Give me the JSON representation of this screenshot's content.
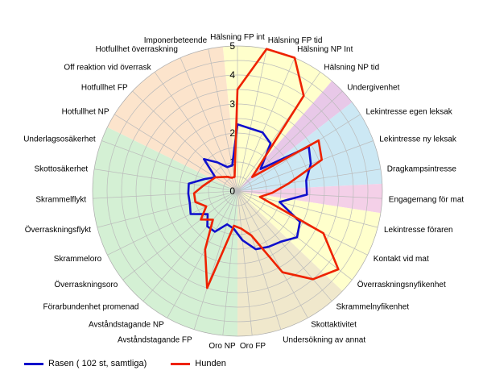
{
  "chart_data": {
    "type": "radar",
    "axes": [
      "Hälsning FP int",
      "Hälsning FP tid",
      "Hälsning NP Int",
      "Hälsning NP tid",
      "Undergivenhet",
      "Lekintresse egen leksak",
      "Lekintresse ny leksak",
      "Dragkampsintresse",
      "Engagemang för mat",
      "Lekintresse föraren",
      "Kontakt vid mat",
      "Överraskningsnyfikenhet",
      "Skrammelnyfikenhet",
      "Skottaktivitet",
      "Undersökning av annat",
      "Oro FP",
      "Oro NP",
      "Avståndstagande FP",
      "Avståndstagande NP",
      "Förarbundenhet promenad",
      "Överraskningsoro",
      "Skrammeloro",
      "Överraskningsflykt",
      "Skrammelflykt",
      "Skottosäkerhet",
      "Underlagsosäkerhet",
      "Hotfullhet NP",
      "Hotfullhet FP",
      "Off reaktion vid överrask",
      "Hotfullhet överraskning",
      "Imponerbeteende"
    ],
    "rlim": [
      0,
      5
    ],
    "tick_labels": [
      "1",
      "2",
      "3",
      "4",
      "5"
    ],
    "grid": true,
    "sectors": [
      {
        "from": 0,
        "to": 3,
        "color": "#ffffcc"
      },
      {
        "from": 4,
        "to": 4,
        "color": "#e8c8e8"
      },
      {
        "from": 5,
        "to": 7,
        "color": "#cce8f4"
      },
      {
        "from": 8,
        "to": 8,
        "color": "#f4d0e8"
      },
      {
        "from": 9,
        "to": 11,
        "color": "#ffffcc"
      },
      {
        "from": 12,
        "to": 15,
        "color": "#f0e8cc"
      },
      {
        "from": 16,
        "to": 25,
        "color": "#d4f0d4"
      },
      {
        "from": 26,
        "to": 30,
        "color": "#fce4cc"
      }
    ],
    "series": [
      {
        "name": "Rasen ( 102 st, samtliga)",
        "color": "#1010cc",
        "values": [
          2.3,
          2.2,
          2.2,
          2.0,
          1.1,
          2.9,
          2.7,
          2.4,
          2.4,
          1.5,
          2.4,
          2.6,
          2.3,
          2.2,
          2.1,
          1.7,
          1.3,
          1.2,
          1.6,
          1.6,
          1.3,
          1.8,
          1.7,
          1.7,
          1.7,
          1.2,
          0.9,
          1.6,
          1.2,
          0.9,
          0.9
        ]
      },
      {
        "name": "Hunden",
        "color": "#ee2200",
        "values": [
          3.5,
          5.0,
          5.0,
          4.0,
          0.7,
          3.3,
          3.1,
          1.8,
          1.2,
          0.8,
          3.3,
          4.4,
          4.0,
          3.2,
          1.6,
          1.3,
          1.2,
          3.5,
          2.3,
          1.3,
          1.6,
          1.2,
          1.5,
          1.5,
          1.2,
          1.0,
          0.9,
          0.7,
          0.6,
          0.5,
          0.5
        ]
      }
    ]
  }
}
